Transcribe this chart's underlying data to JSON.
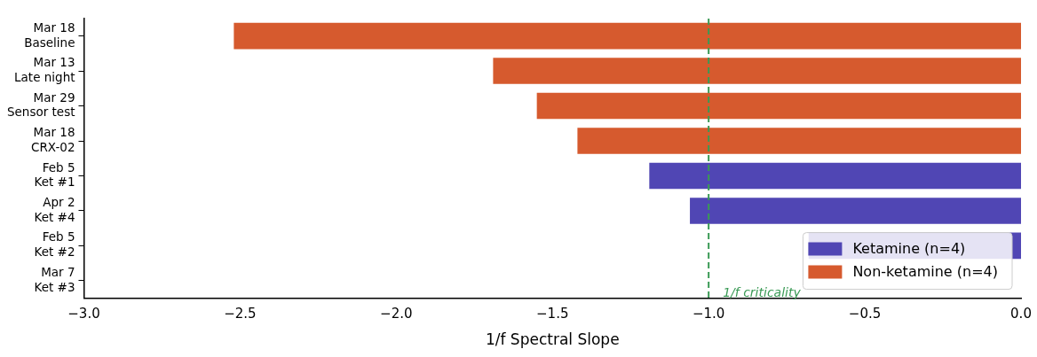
{
  "chart_data": {
    "type": "bar",
    "orientation": "horizontal",
    "xlabel": "1/f Spectral Slope",
    "categories": [
      "Mar 18\nBaseline",
      "Mar 13\nLate night",
      "Mar 29\nSensor test",
      "Mar 18\nCRX-02",
      "Feb 5\nKet #1",
      "Apr 2\nKet #4",
      "Feb 5\nKet #2",
      "Mar 7\nKet #3"
    ],
    "series": [
      {
        "name": "Ketamine (n=4)",
        "color": "#5046b4",
        "values": [
          null,
          null,
          null,
          null,
          -1.19,
          -1.06,
          -0.68,
          null
        ]
      },
      {
        "name": "Non-ketamine (n=4)",
        "color": "#d65a2e",
        "values": [
          -2.52,
          -1.69,
          -1.55,
          -1.42,
          null,
          null,
          null,
          null
        ]
      }
    ],
    "xlim": [
      -3,
      0
    ],
    "xticks": [
      {
        "value": -3,
        "label": "−3.0"
      },
      {
        "value": -2.5,
        "label": "−2.5"
      },
      {
        "value": -2,
        "label": "−2.0"
      },
      {
        "value": -1.5,
        "label": "−1.5"
      },
      {
        "value": -1,
        "label": "−1.0"
      },
      {
        "value": -0.5,
        "label": "−0.5"
      },
      {
        "value": 0,
        "label": "0.0"
      }
    ],
    "ref_lines": [
      {
        "axis": "x",
        "value": -1,
        "label": "1/f criticality",
        "color": "#3a9a55",
        "line_style": "dashed"
      }
    ],
    "grid": false,
    "legend": "bottom right"
  }
}
